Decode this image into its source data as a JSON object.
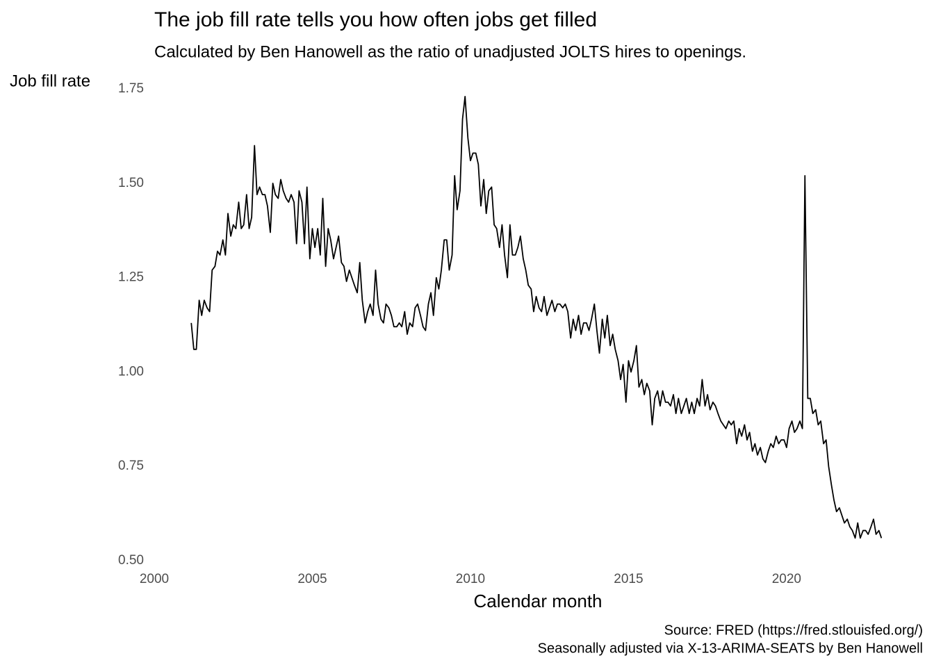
{
  "chart_data": {
    "type": "line",
    "title": "The job fill rate tells you how often jobs get filled",
    "subtitle": "Calculated by Ben Hanowell as the ratio of unadjusted JOLTS hires to openings.",
    "y_label": "Job fill rate",
    "x_label": "Calendar month",
    "caption": [
      "Source: FRED (https://fred.stlouisfed.org/)",
      "Seasonally adjusted via X-13-ARIMA-SEATS by Ben Hanowell"
    ],
    "color": "#000000",
    "xlim": [
      2000,
      2023.3
    ],
    "xticks": [
      2000,
      2005,
      2010,
      2015,
      2020
    ],
    "ylim": [
      0.5,
      1.75
    ],
    "yticks": [
      {
        "value": 0.5,
        "label": "0.50"
      },
      0.75,
      {
        "value": 1.0,
        "label": "1.00"
      },
      1.25,
      {
        "value": 1.5,
        "label": "1.50"
      },
      1.75
    ],
    "x": [
      2001.17,
      2001.25,
      2001.33,
      2001.42,
      2001.5,
      2001.58,
      2001.67,
      2001.75,
      2001.83,
      2001.92,
      2002.0,
      2002.08,
      2002.17,
      2002.25,
      2002.33,
      2002.42,
      2002.5,
      2002.58,
      2002.67,
      2002.75,
      2002.83,
      2002.92,
      2003.0,
      2003.08,
      2003.17,
      2003.25,
      2003.33,
      2003.42,
      2003.5,
      2003.58,
      2003.67,
      2003.75,
      2003.83,
      2003.92,
      2004.0,
      2004.08,
      2004.17,
      2004.25,
      2004.33,
      2004.42,
      2004.5,
      2004.58,
      2004.67,
      2004.75,
      2004.83,
      2004.92,
      2005.0,
      2005.08,
      2005.17,
      2005.25,
      2005.33,
      2005.42,
      2005.5,
      2005.58,
      2005.67,
      2005.75,
      2005.83,
      2005.92,
      2006.0,
      2006.08,
      2006.17,
      2006.25,
      2006.33,
      2006.42,
      2006.5,
      2006.58,
      2006.67,
      2006.75,
      2006.83,
      2006.92,
      2007.0,
      2007.08,
      2007.17,
      2007.25,
      2007.33,
      2007.42,
      2007.5,
      2007.58,
      2007.67,
      2007.75,
      2007.83,
      2007.92,
      2008.0,
      2008.08,
      2008.17,
      2008.25,
      2008.33,
      2008.42,
      2008.5,
      2008.58,
      2008.67,
      2008.75,
      2008.83,
      2008.92,
      2009.0,
      2009.08,
      2009.17,
      2009.25,
      2009.33,
      2009.42,
      2009.5,
      2009.58,
      2009.67,
      2009.75,
      2009.83,
      2009.92,
      2010.0,
      2010.08,
      2010.17,
      2010.25,
      2010.33,
      2010.42,
      2010.5,
      2010.58,
      2010.67,
      2010.75,
      2010.83,
      2010.92,
      2011.0,
      2011.08,
      2011.17,
      2011.25,
      2011.33,
      2011.42,
      2011.5,
      2011.58,
      2011.67,
      2011.75,
      2011.83,
      2011.92,
      2012.0,
      2012.08,
      2012.17,
      2012.25,
      2012.33,
      2012.42,
      2012.5,
      2012.58,
      2012.67,
      2012.75,
      2012.83,
      2012.92,
      2013.0,
      2013.08,
      2013.17,
      2013.25,
      2013.33,
      2013.42,
      2013.5,
      2013.58,
      2013.67,
      2013.75,
      2013.83,
      2013.92,
      2014.0,
      2014.08,
      2014.17,
      2014.25,
      2014.33,
      2014.42,
      2014.5,
      2014.58,
      2014.67,
      2014.75,
      2014.83,
      2014.92,
      2015.0,
      2015.08,
      2015.17,
      2015.25,
      2015.33,
      2015.42,
      2015.5,
      2015.58,
      2015.67,
      2015.75,
      2015.83,
      2015.92,
      2016.0,
      2016.08,
      2016.17,
      2016.25,
      2016.33,
      2016.42,
      2016.5,
      2016.58,
      2016.67,
      2016.75,
      2016.83,
      2016.92,
      2017.0,
      2017.08,
      2017.17,
      2017.25,
      2017.33,
      2017.42,
      2017.5,
      2017.58,
      2017.67,
      2017.75,
      2017.83,
      2017.92,
      2018.0,
      2018.08,
      2018.17,
      2018.25,
      2018.33,
      2018.42,
      2018.5,
      2018.58,
      2018.67,
      2018.75,
      2018.83,
      2018.92,
      2019.0,
      2019.08,
      2019.17,
      2019.25,
      2019.33,
      2019.42,
      2019.5,
      2019.58,
      2019.67,
      2019.75,
      2019.83,
      2019.92,
      2020.0,
      2020.08,
      2020.17,
      2020.25,
      2020.33,
      2020.42,
      2020.5,
      2020.58,
      2020.67,
      2020.75,
      2020.83,
      2020.92,
      2021.0,
      2021.08,
      2021.17,
      2021.25,
      2021.33,
      2021.42,
      2021.5,
      2021.58,
      2021.67,
      2021.75,
      2021.83,
      2021.92,
      2022.0,
      2022.08,
      2022.17,
      2022.25,
      2022.33,
      2022.42,
      2022.5,
      2022.58,
      2022.67,
      2022.75,
      2022.83,
      2022.92,
      2023.0
    ],
    "values": [
      1.13,
      1.06,
      1.06,
      1.19,
      1.15,
      1.19,
      1.17,
      1.16,
      1.27,
      1.28,
      1.32,
      1.31,
      1.35,
      1.31,
      1.42,
      1.36,
      1.39,
      1.38,
      1.45,
      1.38,
      1.39,
      1.47,
      1.38,
      1.41,
      1.6,
      1.47,
      1.49,
      1.47,
      1.47,
      1.44,
      1.37,
      1.5,
      1.47,
      1.46,
      1.51,
      1.48,
      1.46,
      1.45,
      1.47,
      1.45,
      1.34,
      1.48,
      1.45,
      1.34,
      1.49,
      1.3,
      1.38,
      1.33,
      1.38,
      1.31,
      1.46,
      1.28,
      1.38,
      1.35,
      1.3,
      1.33,
      1.36,
      1.29,
      1.28,
      1.24,
      1.27,
      1.25,
      1.23,
      1.21,
      1.29,
      1.19,
      1.13,
      1.16,
      1.18,
      1.15,
      1.27,
      1.18,
      1.14,
      1.13,
      1.18,
      1.17,
      1.15,
      1.12,
      1.12,
      1.13,
      1.12,
      1.16,
      1.1,
      1.13,
      1.12,
      1.17,
      1.18,
      1.15,
      1.12,
      1.11,
      1.18,
      1.21,
      1.15,
      1.25,
      1.22,
      1.27,
      1.35,
      1.35,
      1.27,
      1.31,
      1.52,
      1.43,
      1.48,
      1.67,
      1.73,
      1.62,
      1.56,
      1.58,
      1.58,
      1.55,
      1.44,
      1.51,
      1.42,
      1.48,
      1.49,
      1.39,
      1.38,
      1.33,
      1.39,
      1.31,
      1.25,
      1.39,
      1.31,
      1.31,
      1.33,
      1.36,
      1.3,
      1.27,
      1.23,
      1.22,
      1.16,
      1.2,
      1.17,
      1.16,
      1.2,
      1.15,
      1.17,
      1.19,
      1.16,
      1.18,
      1.18,
      1.17,
      1.18,
      1.16,
      1.09,
      1.14,
      1.11,
      1.15,
      1.1,
      1.13,
      1.13,
      1.11,
      1.14,
      1.18,
      1.11,
      1.05,
      1.14,
      1.09,
      1.15,
      1.07,
      1.1,
      1.06,
      1.03,
      0.98,
      1.02,
      0.92,
      1.03,
      1.0,
      1.03,
      1.07,
      0.96,
      0.98,
      0.94,
      0.97,
      0.95,
      0.86,
      0.93,
      0.95,
      0.91,
      0.95,
      0.92,
      0.92,
      0.91,
      0.94,
      0.89,
      0.93,
      0.89,
      0.91,
      0.93,
      0.89,
      0.92,
      0.89,
      0.93,
      0.91,
      0.98,
      0.91,
      0.94,
      0.9,
      0.92,
      0.91,
      0.89,
      0.87,
      0.86,
      0.85,
      0.87,
      0.86,
      0.87,
      0.81,
      0.85,
      0.83,
      0.86,
      0.82,
      0.84,
      0.79,
      0.81,
      0.78,
      0.8,
      0.77,
      0.76,
      0.79,
      0.81,
      0.8,
      0.83,
      0.81,
      0.82,
      0.82,
      0.8,
      0.85,
      0.87,
      0.84,
      0.85,
      0.87,
      0.85,
      1.52,
      0.93,
      0.93,
      0.89,
      0.9,
      0.86,
      0.87,
      0.81,
      0.82,
      0.75,
      0.7,
      0.66,
      0.63,
      0.64,
      0.62,
      0.6,
      0.61,
      0.59,
      0.58,
      0.56,
      0.6,
      0.56,
      0.58,
      0.58,
      0.57,
      0.59,
      0.61,
      0.57,
      0.58,
      0.56
    ]
  }
}
